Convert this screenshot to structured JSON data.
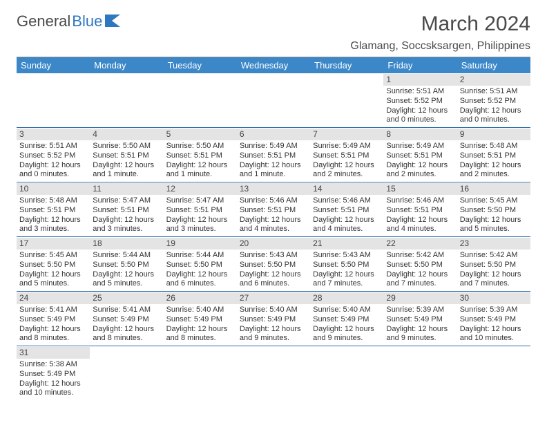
{
  "brand": {
    "part1": "General",
    "part2": "Blue"
  },
  "title": "March 2024",
  "location": "Glamang, Soccsksargen, Philippines",
  "colors": {
    "header_bg": "#3b87c8",
    "header_text": "#ffffff",
    "daynum_bg": "#e4e4e4",
    "border": "#2f6aa8",
    "brand_blue": "#2f78bf",
    "text": "#333333"
  },
  "daysOfWeek": [
    "Sunday",
    "Monday",
    "Tuesday",
    "Wednesday",
    "Thursday",
    "Friday",
    "Saturday"
  ],
  "weeks": [
    [
      null,
      null,
      null,
      null,
      null,
      {
        "n": "1",
        "sunrise": "Sunrise: 5:51 AM",
        "sunset": "Sunset: 5:52 PM",
        "daylight": "Daylight: 12 hours and 0 minutes."
      },
      {
        "n": "2",
        "sunrise": "Sunrise: 5:51 AM",
        "sunset": "Sunset: 5:52 PM",
        "daylight": "Daylight: 12 hours and 0 minutes."
      }
    ],
    [
      {
        "n": "3",
        "sunrise": "Sunrise: 5:51 AM",
        "sunset": "Sunset: 5:52 PM",
        "daylight": "Daylight: 12 hours and 0 minutes."
      },
      {
        "n": "4",
        "sunrise": "Sunrise: 5:50 AM",
        "sunset": "Sunset: 5:51 PM",
        "daylight": "Daylight: 12 hours and 1 minute."
      },
      {
        "n": "5",
        "sunrise": "Sunrise: 5:50 AM",
        "sunset": "Sunset: 5:51 PM",
        "daylight": "Daylight: 12 hours and 1 minute."
      },
      {
        "n": "6",
        "sunrise": "Sunrise: 5:49 AM",
        "sunset": "Sunset: 5:51 PM",
        "daylight": "Daylight: 12 hours and 1 minute."
      },
      {
        "n": "7",
        "sunrise": "Sunrise: 5:49 AM",
        "sunset": "Sunset: 5:51 PM",
        "daylight": "Daylight: 12 hours and 2 minutes."
      },
      {
        "n": "8",
        "sunrise": "Sunrise: 5:49 AM",
        "sunset": "Sunset: 5:51 PM",
        "daylight": "Daylight: 12 hours and 2 minutes."
      },
      {
        "n": "9",
        "sunrise": "Sunrise: 5:48 AM",
        "sunset": "Sunset: 5:51 PM",
        "daylight": "Daylight: 12 hours and 2 minutes."
      }
    ],
    [
      {
        "n": "10",
        "sunrise": "Sunrise: 5:48 AM",
        "sunset": "Sunset: 5:51 PM",
        "daylight": "Daylight: 12 hours and 3 minutes."
      },
      {
        "n": "11",
        "sunrise": "Sunrise: 5:47 AM",
        "sunset": "Sunset: 5:51 PM",
        "daylight": "Daylight: 12 hours and 3 minutes."
      },
      {
        "n": "12",
        "sunrise": "Sunrise: 5:47 AM",
        "sunset": "Sunset: 5:51 PM",
        "daylight": "Daylight: 12 hours and 3 minutes."
      },
      {
        "n": "13",
        "sunrise": "Sunrise: 5:46 AM",
        "sunset": "Sunset: 5:51 PM",
        "daylight": "Daylight: 12 hours and 4 minutes."
      },
      {
        "n": "14",
        "sunrise": "Sunrise: 5:46 AM",
        "sunset": "Sunset: 5:51 PM",
        "daylight": "Daylight: 12 hours and 4 minutes."
      },
      {
        "n": "15",
        "sunrise": "Sunrise: 5:46 AM",
        "sunset": "Sunset: 5:51 PM",
        "daylight": "Daylight: 12 hours and 4 minutes."
      },
      {
        "n": "16",
        "sunrise": "Sunrise: 5:45 AM",
        "sunset": "Sunset: 5:50 PM",
        "daylight": "Daylight: 12 hours and 5 minutes."
      }
    ],
    [
      {
        "n": "17",
        "sunrise": "Sunrise: 5:45 AM",
        "sunset": "Sunset: 5:50 PM",
        "daylight": "Daylight: 12 hours and 5 minutes."
      },
      {
        "n": "18",
        "sunrise": "Sunrise: 5:44 AM",
        "sunset": "Sunset: 5:50 PM",
        "daylight": "Daylight: 12 hours and 5 minutes."
      },
      {
        "n": "19",
        "sunrise": "Sunrise: 5:44 AM",
        "sunset": "Sunset: 5:50 PM",
        "daylight": "Daylight: 12 hours and 6 minutes."
      },
      {
        "n": "20",
        "sunrise": "Sunrise: 5:43 AM",
        "sunset": "Sunset: 5:50 PM",
        "daylight": "Daylight: 12 hours and 6 minutes."
      },
      {
        "n": "21",
        "sunrise": "Sunrise: 5:43 AM",
        "sunset": "Sunset: 5:50 PM",
        "daylight": "Daylight: 12 hours and 7 minutes."
      },
      {
        "n": "22",
        "sunrise": "Sunrise: 5:42 AM",
        "sunset": "Sunset: 5:50 PM",
        "daylight": "Daylight: 12 hours and 7 minutes."
      },
      {
        "n": "23",
        "sunrise": "Sunrise: 5:42 AM",
        "sunset": "Sunset: 5:50 PM",
        "daylight": "Daylight: 12 hours and 7 minutes."
      }
    ],
    [
      {
        "n": "24",
        "sunrise": "Sunrise: 5:41 AM",
        "sunset": "Sunset: 5:49 PM",
        "daylight": "Daylight: 12 hours and 8 minutes."
      },
      {
        "n": "25",
        "sunrise": "Sunrise: 5:41 AM",
        "sunset": "Sunset: 5:49 PM",
        "daylight": "Daylight: 12 hours and 8 minutes."
      },
      {
        "n": "26",
        "sunrise": "Sunrise: 5:40 AM",
        "sunset": "Sunset: 5:49 PM",
        "daylight": "Daylight: 12 hours and 8 minutes."
      },
      {
        "n": "27",
        "sunrise": "Sunrise: 5:40 AM",
        "sunset": "Sunset: 5:49 PM",
        "daylight": "Daylight: 12 hours and 9 minutes."
      },
      {
        "n": "28",
        "sunrise": "Sunrise: 5:40 AM",
        "sunset": "Sunset: 5:49 PM",
        "daylight": "Daylight: 12 hours and 9 minutes."
      },
      {
        "n": "29",
        "sunrise": "Sunrise: 5:39 AM",
        "sunset": "Sunset: 5:49 PM",
        "daylight": "Daylight: 12 hours and 9 minutes."
      },
      {
        "n": "30",
        "sunrise": "Sunrise: 5:39 AM",
        "sunset": "Sunset: 5:49 PM",
        "daylight": "Daylight: 12 hours and 10 minutes."
      }
    ],
    [
      {
        "n": "31",
        "sunrise": "Sunrise: 5:38 AM",
        "sunset": "Sunset: 5:49 PM",
        "daylight": "Daylight: 12 hours and 10 minutes."
      },
      null,
      null,
      null,
      null,
      null,
      null
    ]
  ]
}
